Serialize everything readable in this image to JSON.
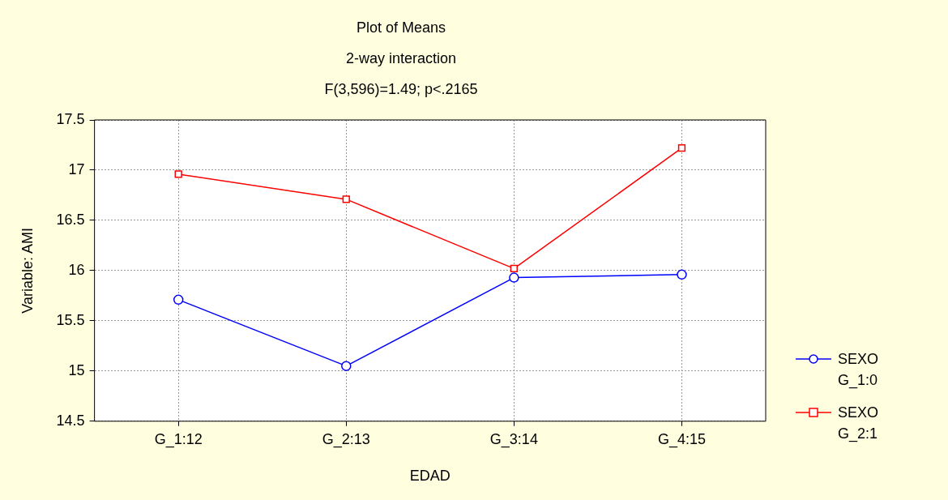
{
  "chart_data": {
    "type": "line",
    "title": "Plot of Means",
    "subtitle": "2-way interaction",
    "annotations": [
      "F(3,596)=1.49; p<.2165"
    ],
    "xlabel": "EDAD",
    "ylabel": "Variable: AMI",
    "categories": [
      "G_1:12",
      "G_2:13",
      "G_3:14",
      "G_4:15"
    ],
    "series": [
      {
        "name": "SEXO G_1:0",
        "color": "#0000ff",
        "marker": "circle",
        "line_style": "solid",
        "values": [
          15.71,
          15.05,
          15.93,
          15.96
        ]
      },
      {
        "name": "SEXO G_2:1",
        "color": "#ff0000",
        "marker": "square",
        "line_style": "solid",
        "values": [
          16.96,
          16.71,
          16.02,
          17.22
        ]
      }
    ],
    "ylim": [
      14.5,
      17.5
    ],
    "yticks": [
      14.5,
      15,
      15.5,
      16,
      16.5,
      17,
      17.5
    ],
    "grid": true,
    "legend": "right"
  }
}
